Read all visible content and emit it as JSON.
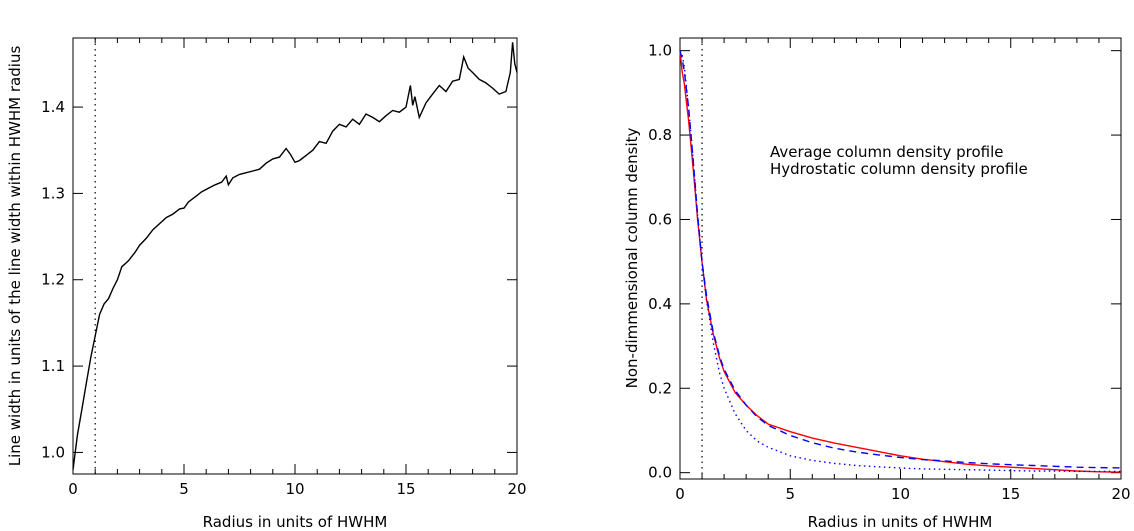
{
  "chart_data": [
    {
      "type": "line",
      "xlabel": "Radius in units of HWHM",
      "ylabel": "Line width in units of the line width within HWHM radius",
      "xlim": [
        0,
        20
      ],
      "ylim": [
        0.975,
        1.48
      ],
      "x_ticks": [
        0,
        5,
        10,
        15,
        20
      ],
      "y_ticks": [
        1.0,
        1.1,
        1.2,
        1.3,
        1.4
      ],
      "x_tick_labels": [
        "0",
        "5",
        "10",
        "15",
        "20"
      ],
      "y_tick_labels": [
        "1.0",
        "1.1",
        "1.2",
        "1.3",
        "1.4"
      ],
      "vline": {
        "x": 1,
        "style": "dotted",
        "color": "#000000"
      },
      "series": [
        {
          "color": "#000000",
          "style": "solid",
          "x": [
            0,
            0.2,
            0.4,
            0.6,
            0.8,
            1.0,
            1.2,
            1.4,
            1.6,
            1.8,
            2.0,
            2.2,
            2.5,
            2.8,
            3.0,
            3.3,
            3.6,
            3.9,
            4.2,
            4.5,
            4.8,
            5.0,
            5.2,
            5.5,
            5.8,
            6.1,
            6.4,
            6.7,
            6.9,
            7.0,
            7.2,
            7.5,
            7.8,
            8.1,
            8.4,
            8.7,
            9.0,
            9.3,
            9.6,
            9.8,
            10.0,
            10.2,
            10.5,
            10.8,
            11.1,
            11.4,
            11.7,
            12.0,
            12.3,
            12.6,
            12.9,
            13.2,
            13.5,
            13.8,
            14.1,
            14.4,
            14.7,
            15.0,
            15.2,
            15.3,
            15.4,
            15.6,
            15.9,
            16.2,
            16.5,
            16.8,
            17.1,
            17.4,
            17.6,
            17.8,
            18.0,
            18.3,
            18.6,
            18.9,
            19.2,
            19.5,
            19.7,
            19.8,
            19.9,
            20.0
          ],
          "y": [
            0.98,
            1.02,
            1.05,
            1.08,
            1.11,
            1.135,
            1.16,
            1.172,
            1.178,
            1.19,
            1.2,
            1.215,
            1.222,
            1.232,
            1.24,
            1.248,
            1.258,
            1.265,
            1.272,
            1.276,
            1.282,
            1.283,
            1.29,
            1.296,
            1.302,
            1.306,
            1.31,
            1.313,
            1.32,
            1.31,
            1.318,
            1.322,
            1.324,
            1.326,
            1.328,
            1.335,
            1.34,
            1.342,
            1.352,
            1.345,
            1.336,
            1.338,
            1.344,
            1.35,
            1.36,
            1.358,
            1.372,
            1.38,
            1.377,
            1.386,
            1.38,
            1.392,
            1.388,
            1.383,
            1.39,
            1.396,
            1.394,
            1.4,
            1.425,
            1.402,
            1.412,
            1.388,
            1.405,
            1.415,
            1.425,
            1.418,
            1.43,
            1.432,
            1.458,
            1.445,
            1.44,
            1.432,
            1.428,
            1.422,
            1.415,
            1.418,
            1.44,
            1.475,
            1.45,
            1.44
          ]
        }
      ]
    },
    {
      "type": "line",
      "xlabel": "Radius in units of HWHM",
      "ylabel": "Non-dimmensional column density",
      "xlim": [
        0,
        20
      ],
      "ylim": [
        -0.015,
        1.03
      ],
      "x_ticks": [
        0,
        5,
        10,
        15,
        20
      ],
      "y_ticks": [
        0.0,
        0.2,
        0.4,
        0.6,
        0.8,
        1.0
      ],
      "x_tick_labels": [
        "0",
        "5",
        "10",
        "15",
        "20"
      ],
      "y_tick_labels": [
        "0.0",
        "0.2",
        "0.4",
        "0.6",
        "0.8",
        "1.0"
      ],
      "vline": {
        "x": 1,
        "style": "dotted",
        "color": "#000000"
      },
      "legend": [
        {
          "text": "Average column density profile",
          "color": "#ff0000"
        },
        {
          "text": "Hydrostatic column density profile",
          "color": "#0000ff"
        }
      ],
      "series": [
        {
          "color": "#ff0000",
          "style": "solid",
          "x": [
            0,
            0.1,
            0.2,
            0.4,
            0.6,
            0.8,
            1.0,
            1.2,
            1.5,
            1.8,
            2.0,
            2.5,
            3.0,
            3.5,
            4.0,
            5.0,
            6.0,
            7.0,
            8.0,
            9.0,
            10.0,
            11.0,
            12.0,
            13.0,
            14.0,
            15.0,
            16.0,
            17.0,
            18.0,
            19.0,
            20.0
          ],
          "y": [
            1.0,
            0.95,
            0.92,
            0.83,
            0.72,
            0.6,
            0.5,
            0.41,
            0.33,
            0.27,
            0.24,
            0.19,
            0.16,
            0.135,
            0.115,
            0.097,
            0.082,
            0.07,
            0.06,
            0.05,
            0.04,
            0.032,
            0.026,
            0.02,
            0.016,
            0.013,
            0.01,
            0.007,
            0.004,
            0.002,
            0.001
          ]
        },
        {
          "color": "#0000ff",
          "style": "dashed",
          "x": [
            0,
            0.1,
            0.2,
            0.4,
            0.6,
            0.8,
            1.0,
            1.2,
            1.5,
            1.8,
            2.0,
            2.5,
            3.0,
            3.5,
            4.0,
            5.0,
            6.0,
            7.0,
            8.0,
            9.0,
            10.0,
            11.0,
            12.0,
            13.0,
            14.0,
            15.0,
            16.0,
            17.0,
            18.0,
            19.0,
            20.0
          ],
          "y": [
            1.0,
            0.98,
            0.95,
            0.86,
            0.74,
            0.61,
            0.5,
            0.42,
            0.335,
            0.275,
            0.245,
            0.195,
            0.16,
            0.132,
            0.112,
            0.088,
            0.071,
            0.058,
            0.049,
            0.042,
            0.036,
            0.031,
            0.028,
            0.024,
            0.021,
            0.019,
            0.017,
            0.015,
            0.013,
            0.012,
            0.011
          ]
        },
        {
          "color": "#0000ff",
          "style": "dotted",
          "x": [
            0,
            0.1,
            0.2,
            0.4,
            0.6,
            0.8,
            1.0,
            1.2,
            1.5,
            1.8,
            2.0,
            2.5,
            3.0,
            3.5,
            4.0,
            5.0,
            6.0,
            7.0,
            8.0,
            9.0,
            10.0,
            11.0,
            12.0,
            13.0,
            14.0,
            15.0,
            16.0,
            17.0,
            18.0,
            19.0,
            20.0
          ],
          "y": [
            1.0,
            0.99,
            0.96,
            0.86,
            0.74,
            0.61,
            0.5,
            0.41,
            0.31,
            0.235,
            0.2,
            0.14,
            0.1,
            0.075,
            0.06,
            0.04,
            0.029,
            0.022,
            0.017,
            0.014,
            0.011,
            0.009,
            0.008,
            0.007,
            0.006,
            0.005,
            0.004,
            0.004,
            0.003,
            0.003,
            0.003
          ]
        }
      ]
    }
  ]
}
